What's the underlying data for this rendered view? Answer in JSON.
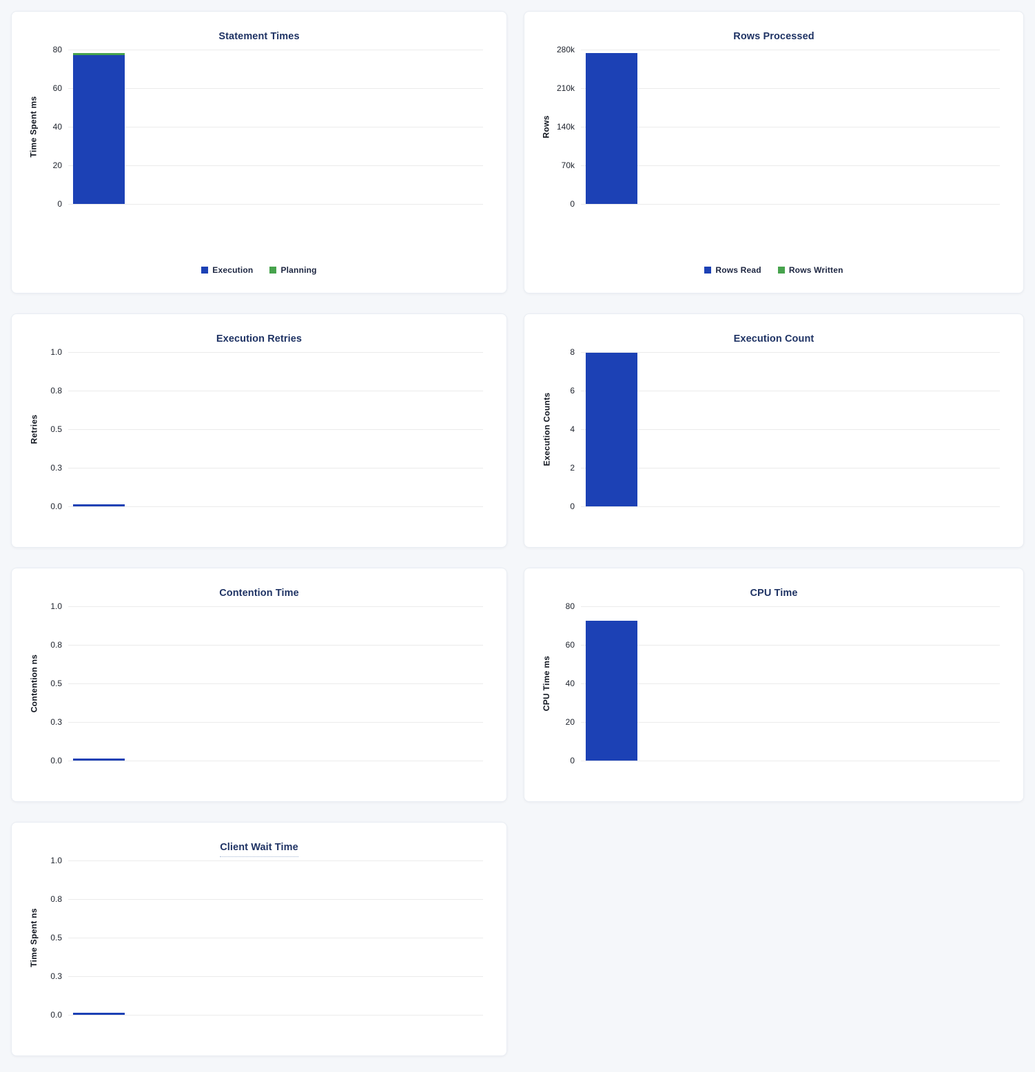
{
  "colors": {
    "page_background": "#f5f7fa",
    "card_background": "#ffffff",
    "bar_blue": "#1c41b5",
    "bar_green": "#47a34d",
    "title_text": "#1f3364",
    "gridline": "#ebebeb"
  },
  "chart_data": [
    {
      "type": "bar",
      "title": "Statement Times",
      "title_tooltip_underline": false,
      "ylabel": "Time Spent ms",
      "yticks_top_to_bottom": [
        "80",
        "60",
        "40",
        "20",
        "0"
      ],
      "ylim": [
        0,
        80
      ],
      "grid": true,
      "stacked": true,
      "categories": [
        ""
      ],
      "series": [
        {
          "name": "Execution",
          "values": [
            77
          ],
          "color": "blue"
        },
        {
          "name": "Planning",
          "values": [
            1.1
          ],
          "color": "green"
        }
      ],
      "legend": {
        "position": "bottom",
        "entries": [
          {
            "label": "Execution",
            "color": "blue"
          },
          {
            "label": "Planning",
            "color": "green"
          }
        ]
      }
    },
    {
      "type": "bar",
      "title": "Rows Processed",
      "title_tooltip_underline": false,
      "ylabel": "Rows",
      "yticks_top_to_bottom": [
        "280k",
        "210k",
        "140k",
        "70k",
        "0"
      ],
      "ylim": [
        0,
        280000
      ],
      "grid": true,
      "stacked": true,
      "categories": [
        ""
      ],
      "series": [
        {
          "name": "Rows Read",
          "values": [
            274000
          ],
          "color": "blue"
        },
        {
          "name": "Rows Written",
          "values": [
            0
          ],
          "color": "green"
        }
      ],
      "legend": {
        "position": "bottom",
        "entries": [
          {
            "label": "Rows Read",
            "color": "blue"
          },
          {
            "label": "Rows Written",
            "color": "green"
          }
        ]
      }
    },
    {
      "type": "bar",
      "title": "Execution Retries",
      "title_tooltip_underline": false,
      "ylabel": "Retries",
      "yticks_top_to_bottom": [
        "1.0",
        "0.8",
        "0.5",
        "0.3",
        "0.0"
      ],
      "ylim": [
        0,
        1
      ],
      "grid": true,
      "stacked": false,
      "categories": [
        ""
      ],
      "series": [
        {
          "values": [
            0
          ],
          "color": "blue"
        }
      ],
      "legend": null
    },
    {
      "type": "bar",
      "title": "Execution Count",
      "title_tooltip_underline": false,
      "ylabel": "Execution Counts",
      "yticks_top_to_bottom": [
        "8",
        "6",
        "4",
        "2",
        "0"
      ],
      "ylim": [
        0,
        8
      ],
      "grid": true,
      "stacked": false,
      "categories": [
        ""
      ],
      "series": [
        {
          "values": [
            7.97
          ],
          "color": "blue"
        }
      ],
      "legend": null
    },
    {
      "type": "bar",
      "title": "Contention Time",
      "title_tooltip_underline": false,
      "ylabel": "Contention ns",
      "yticks_top_to_bottom": [
        "1.0",
        "0.8",
        "0.5",
        "0.3",
        "0.0"
      ],
      "ylim": [
        0,
        1
      ],
      "grid": true,
      "stacked": false,
      "categories": [
        ""
      ],
      "series": [
        {
          "values": [
            0
          ],
          "color": "blue"
        }
      ],
      "legend": null
    },
    {
      "type": "bar",
      "title": "CPU Time",
      "title_tooltip_underline": false,
      "ylabel": "CPU Time ms",
      "yticks_top_to_bottom": [
        "80",
        "60",
        "40",
        "20",
        "0"
      ],
      "ylim": [
        0,
        80
      ],
      "grid": true,
      "stacked": false,
      "categories": [
        ""
      ],
      "series": [
        {
          "values": [
            72.5
          ],
          "color": "blue"
        }
      ],
      "legend": null
    },
    {
      "type": "bar",
      "title": "Client Wait Time",
      "title_tooltip_underline": true,
      "ylabel": "Time Spent ns",
      "yticks_top_to_bottom": [
        "1.0",
        "0.8",
        "0.5",
        "0.3",
        "0.0"
      ],
      "ylim": [
        0,
        1
      ],
      "grid": true,
      "stacked": false,
      "categories": [
        ""
      ],
      "series": [
        {
          "values": [
            0
          ],
          "color": "blue"
        }
      ],
      "legend": null
    }
  ]
}
